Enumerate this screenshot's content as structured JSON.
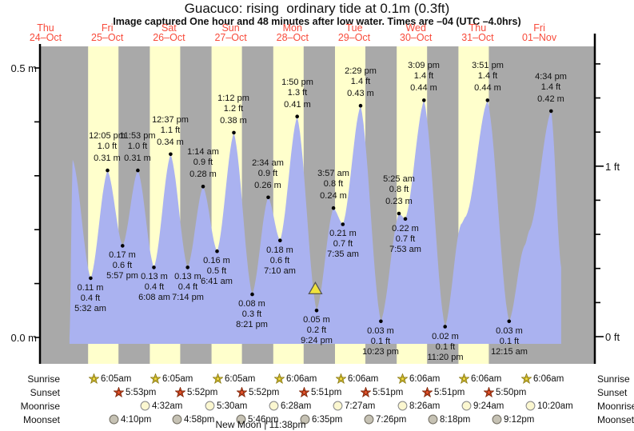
{
  "title": "Guacuco: rising  ordinary tide at 0.1m (0.3ft)",
  "subtitle": "Image captured One hour and 48 minutes after low water. Times are –04 (UTC –4.0hrs)",
  "y_axis": {
    "left": [
      "0.5 m",
      "0.0 m"
    ],
    "right": [
      "1 ft",
      "0 ft"
    ]
  },
  "days": [
    {
      "name": "Thu",
      "date": "24–Oct",
      "daylight": false
    },
    {
      "name": "Fri",
      "date": "25–Oct",
      "daylight": true
    },
    {
      "name": "Sat",
      "date": "26–Oct",
      "daylight": true
    },
    {
      "name": "Sun",
      "date": "27–Oct",
      "daylight": true
    },
    {
      "name": "Mon",
      "date": "28–Oct",
      "daylight": true
    },
    {
      "name": "Tue",
      "date": "29–Oct",
      "daylight": true
    },
    {
      "name": "Wed",
      "date": "30–Oct",
      "daylight": true
    },
    {
      "name": "Thu",
      "date": "31–Oct",
      "daylight": true
    },
    {
      "name": "Fri",
      "date": "01–Nov",
      "daylight": false
    }
  ],
  "chart_data": {
    "type": "area",
    "description": "tide height curve over nine days, highs and lows annotated",
    "x_range": [
      "Thu 24-Oct",
      "Fri 01-Nov"
    ],
    "ylim_m": [
      0.0,
      0.5
    ],
    "ylim_ft": [
      0.0,
      1.6
    ],
    "y_ticks_m": [
      0.0,
      0.1,
      0.2,
      0.3,
      0.4,
      0.5
    ],
    "y_ticks_ft": [
      0.0,
      0.2,
      0.4,
      0.6,
      0.8,
      1.0,
      1.2,
      1.4,
      1.6
    ],
    "extremes": [
      {
        "day": 1,
        "time": "5:32 am",
        "value_m": 0.11,
        "m": "0.11 m",
        "ft": "0.4 ft",
        "kind": "low"
      },
      {
        "day": 1,
        "time": "12:05 pm",
        "value_m": 0.31,
        "m": "0.31 m",
        "ft": "1.0 ft",
        "kind": "high"
      },
      {
        "day": 1,
        "time": "5:57 pm",
        "value_m": 0.17,
        "m": "0.17 m",
        "ft": "0.6 ft",
        "kind": "low"
      },
      {
        "day": 1,
        "time": "11:53 pm",
        "value_m": 0.31,
        "m": "0.31 m",
        "ft": "1.0 ft",
        "kind": "high"
      },
      {
        "day": 2,
        "time": "6:08 am",
        "value_m": 0.13,
        "m": "0.13 m",
        "ft": "0.4 ft",
        "kind": "low"
      },
      {
        "day": 2,
        "time": "12:37 pm",
        "value_m": 0.34,
        "m": "0.34 m",
        "ft": "1.1 ft",
        "kind": "high"
      },
      {
        "day": 2,
        "time": "7:14 pm",
        "value_m": 0.13,
        "m": "0.13 m",
        "ft": "0.4 ft",
        "kind": "low"
      },
      {
        "day": 3,
        "time": "1:14 am",
        "value_m": 0.28,
        "m": "0.28 m",
        "ft": "0.9 ft",
        "kind": "high"
      },
      {
        "day": 3,
        "time": "6:41 am",
        "value_m": 0.16,
        "m": "0.16 m",
        "ft": "0.5 ft",
        "kind": "low"
      },
      {
        "day": 3,
        "time": "1:12 pm",
        "value_m": 0.38,
        "m": "0.38 m",
        "ft": "1.2 ft",
        "kind": "high"
      },
      {
        "day": 3,
        "time": "8:21 pm",
        "value_m": 0.08,
        "m": "0.08 m",
        "ft": "0.3 ft",
        "kind": "low"
      },
      {
        "day": 4,
        "time": "2:34 am",
        "value_m": 0.26,
        "m": "0.26 m",
        "ft": "0.9 ft",
        "kind": "high"
      },
      {
        "day": 4,
        "time": "7:10 am",
        "value_m": 0.18,
        "m": "0.18 m",
        "ft": "0.6 ft",
        "kind": "low"
      },
      {
        "day": 4,
        "time": "1:50 pm",
        "value_m": 0.41,
        "m": "0.41 m",
        "ft": "1.3 ft",
        "kind": "high"
      },
      {
        "day": 4,
        "time": "9:24 pm",
        "value_m": 0.05,
        "m": "0.05 m",
        "ft": "0.2 ft",
        "kind": "low"
      },
      {
        "day": 5,
        "time": "3:57 am",
        "value_m": 0.24,
        "m": "0.24 m",
        "ft": "0.8 ft",
        "kind": "high"
      },
      {
        "day": 5,
        "time": "7:35 am",
        "value_m": 0.21,
        "m": "0.21 m",
        "ft": "0.7 ft",
        "kind": "low"
      },
      {
        "day": 5,
        "time": "2:29 pm",
        "value_m": 0.43,
        "m": "0.43 m",
        "ft": "1.4 ft",
        "kind": "high"
      },
      {
        "day": 5,
        "time": "10:23 pm",
        "value_m": 0.03,
        "m": "0.03 m",
        "ft": "0.1 ft",
        "kind": "low"
      },
      {
        "day": 6,
        "time": "5:25 am",
        "value_m": 0.23,
        "m": "0.23 m",
        "ft": "0.8 ft",
        "kind": "high"
      },
      {
        "day": 6,
        "time": "7:53 am",
        "value_m": 0.22,
        "m": "0.22 m",
        "ft": "0.7 ft",
        "kind": "low"
      },
      {
        "day": 6,
        "time": "3:09 pm",
        "value_m": 0.44,
        "m": "0.44 m",
        "ft": "1.4 ft",
        "kind": "high"
      },
      {
        "day": 6,
        "time": "11:20 pm",
        "value_m": 0.02,
        "m": "0.02 m",
        "ft": "0.1 ft",
        "kind": "low"
      },
      {
        "day": 7,
        "time": "3:51 pm",
        "value_m": 0.44,
        "m": "0.44 m",
        "ft": "1.4 ft",
        "kind": "high"
      },
      {
        "day": 8,
        "time": "12:15 am",
        "value_m": 0.03,
        "m": "0.03 m",
        "ft": "0.1 ft",
        "kind": "low"
      },
      {
        "day": 8,
        "time": "4:34 pm",
        "value_m": 0.42,
        "m": "0.42 m",
        "ft": "1.4 ft",
        "kind": "high"
      }
    ],
    "unlabeled_curve_points": [
      {
        "day": 0,
        "hour": 21.3,
        "value_m": 0.0
      },
      {
        "day": 0,
        "hour": 22.55,
        "value_m": 0.33
      },
      {
        "day": 7,
        "hour": 5.5,
        "value_m": 0.21
      },
      {
        "day": 7,
        "hour": 7.5,
        "value_m": 0.225
      },
      {
        "day": 8,
        "hour": 6.2,
        "value_m": 0.17
      },
      {
        "day": 8,
        "hour": 8.3,
        "value_m": 0.2
      },
      {
        "day": 8,
        "hour": 20.5,
        "value_m": 0.13
      }
    ],
    "current_time_marker": {
      "day": 4,
      "hour": 20.9,
      "value_m": 0.09
    }
  },
  "astro": {
    "row_labels": [
      "Sunrise",
      "Sunset",
      "Moonrise",
      "Moonset"
    ],
    "sunrise": [
      {
        "day": 1,
        "time": "6:05am"
      },
      {
        "day": 2,
        "time": "6:05am"
      },
      {
        "day": 3,
        "time": "6:05am"
      },
      {
        "day": 4,
        "time": "6:06am"
      },
      {
        "day": 5,
        "time": "6:06am"
      },
      {
        "day": 6,
        "time": "6:06am"
      },
      {
        "day": 7,
        "time": "6:06am"
      },
      {
        "day": 8,
        "time": "6:06am"
      }
    ],
    "sunset": [
      {
        "day": 1,
        "time": "5:53pm"
      },
      {
        "day": 2,
        "time": "5:52pm"
      },
      {
        "day": 3,
        "time": "5:52pm"
      },
      {
        "day": 4,
        "time": "5:51pm"
      },
      {
        "day": 5,
        "time": "5:51pm"
      },
      {
        "day": 6,
        "time": "5:51pm"
      },
      {
        "day": 7,
        "time": "5:50pm"
      }
    ],
    "moonrise": [
      {
        "day": 2,
        "time": "4:32am"
      },
      {
        "day": 3,
        "time": "5:30am"
      },
      {
        "day": 4,
        "time": "6:28am"
      },
      {
        "day": 5,
        "time": "7:27am"
      },
      {
        "day": 6,
        "time": "8:26am"
      },
      {
        "day": 7,
        "time": "9:24am"
      },
      {
        "day": 8,
        "time": "10:20am"
      }
    ],
    "moonset": [
      {
        "day": 1,
        "time": "4:10pm"
      },
      {
        "day": 2,
        "time": "4:58pm"
      },
      {
        "day": 3,
        "time": "5:46pm"
      },
      {
        "day": 4,
        "time": "6:35pm"
      },
      {
        "day": 5,
        "time": "7:26pm"
      },
      {
        "day": 6,
        "time": "8:18pm"
      },
      {
        "day": 7,
        "time": "9:12pm"
      }
    ],
    "new_moon": {
      "day": 3,
      "time": "11:38pm",
      "text": "New Moon | 11:38pm"
    }
  },
  "colors": {
    "daylight_band": "#ffffcc",
    "night_band": "#a9a9a9",
    "tide_area": "#aab2f0",
    "day_label_red": "#f84b3b",
    "axis_black": "#000000",
    "annotation_text": "#111111",
    "sunrise_star": "#ecd53e",
    "sunset_star": "#e2512b",
    "moonrise_disc": "#fbf7d0",
    "moonset_disc": "#c6c2b4",
    "marker_triangle": "#f0e23c"
  }
}
